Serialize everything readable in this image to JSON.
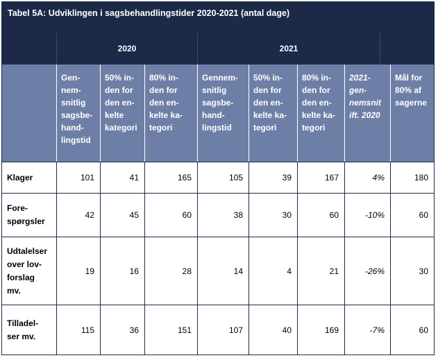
{
  "title": "Tabel 5A: Udviklingen i sagsbehandlingstider 2020-2021 (antal dage)",
  "years": [
    "2020",
    "2021"
  ],
  "headers": [
    "Gen-\nnem-\nsnitlig\nsagsbe-\nhand-\nlingstid",
    "50% in-\nden for\nden en-\nkelte\nkategori",
    "80% in-\nden for\nden en-\nkelte ka-\ntegori",
    "Gennem-\nsnitlig\nsagsbe-\nhand-\nlingstid",
    "50% in-\nden for\nden en-\nkelte ka-\ntegori",
    "80% in-\nden for\nden en-\nkelte ka-\ntegori",
    "2021-\ngen-\nnemsnit\nift. 2020",
    "Mål for\n80% af\nsagerne"
  ],
  "rows": [
    {
      "label": "Klager",
      "values": [
        "101",
        "41",
        "165",
        "105",
        "39",
        "167",
        "4%",
        "180"
      ]
    },
    {
      "label": "Fore-\nspørgsler",
      "values": [
        "42",
        "45",
        "60",
        "38",
        "30",
        "60",
        "-10%",
        "60"
      ]
    },
    {
      "label": "Udtalelser\nover lov-\nforslag\nmv.",
      "values": [
        "19",
        "16",
        "28",
        "14",
        "4",
        "21",
        "-26%",
        "30"
      ]
    },
    {
      "label": "Tilladel-\nser mv.",
      "values": [
        "115",
        "36",
        "151",
        "107",
        "40",
        "169",
        "-7%",
        "60"
      ]
    }
  ]
}
